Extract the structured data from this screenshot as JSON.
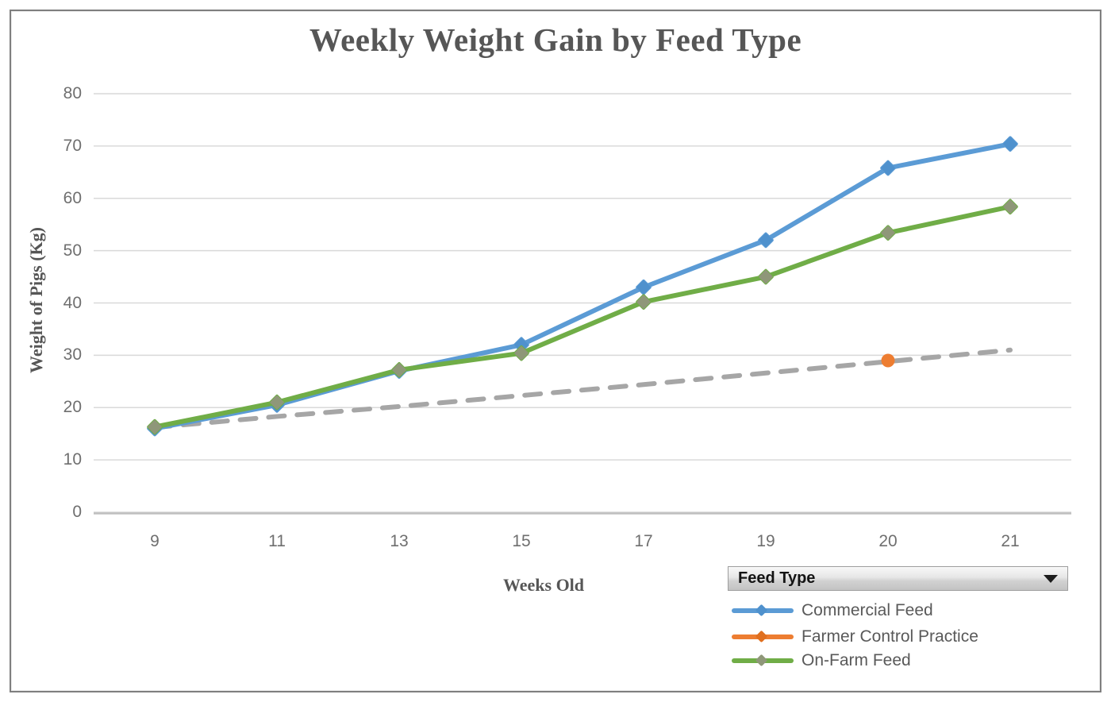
{
  "title": "Weekly Weight Gain by Feed Type",
  "legend": {
    "header": "Feed Type",
    "dropdown_icon": "down-triangle"
  },
  "colors": {
    "frame_border": "#7f7f7f",
    "gridline": "#d9d9d9",
    "axis_line": "#bfbfbf",
    "tick_text": "#6f6f6f",
    "title_text": "#565656",
    "legend_text": "#595959"
  },
  "chart_data": {
    "type": "line",
    "title": "Weekly Weight Gain by Feed Type",
    "xlabel": "Weeks Old",
    "ylabel": "Weight of Pigs (Kg)",
    "categories": [
      9,
      11,
      13,
      15,
      17,
      19,
      20,
      21
    ],
    "ylim": [
      0,
      80
    ],
    "ytick_step": 10,
    "grid": true,
    "legend_position": "bottom-right",
    "series": [
      {
        "name": "Commercial Feed",
        "color": "#5b9bd5",
        "marker": "diamond",
        "marker_color": "#4f91cd",
        "values": [
          16,
          20.5,
          27,
          32,
          43,
          52,
          65.8,
          70.4
        ]
      },
      {
        "name": "Farmer Control Practice",
        "color": "#ed7d31",
        "marker": "circle",
        "marker_color": "#e06f1f",
        "values": [
          null,
          null,
          null,
          null,
          null,
          null,
          29,
          null
        ]
      },
      {
        "name": "On-Farm Feed",
        "color": "#70ad47",
        "marker": "diamond",
        "marker_color": "#8f9779",
        "values": [
          16.3,
          21,
          27.2,
          30.4,
          40.2,
          45,
          53.4,
          58.4
        ]
      }
    ],
    "trendline": {
      "style": "dashed",
      "color": "#a6a6a6",
      "start_marker_color": "#9b9b9b",
      "values": [
        16.2,
        18.3,
        20.2,
        22.3,
        24.4,
        26.6,
        28.8,
        31
      ]
    }
  }
}
